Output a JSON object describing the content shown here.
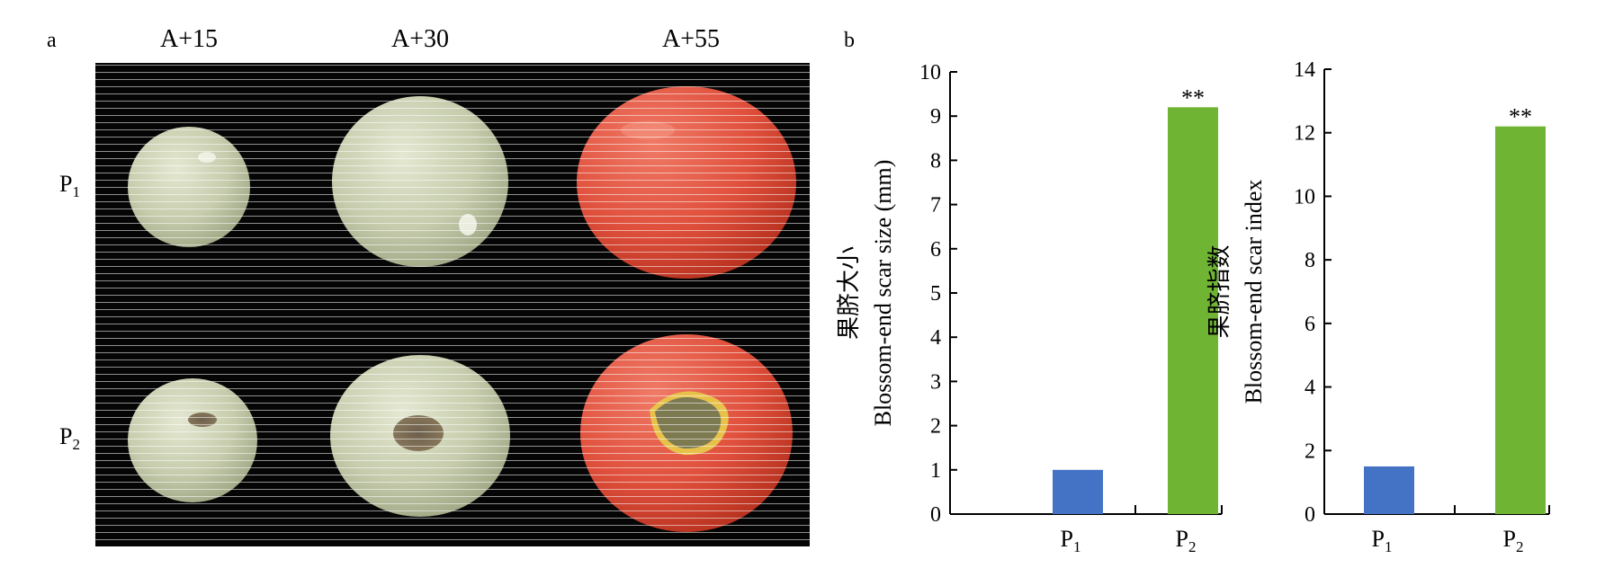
{
  "panel_a": {
    "label": "a",
    "columns": [
      "A+15",
      "A+30",
      "A+55"
    ],
    "rows": [
      {
        "base": "P",
        "sub": "1"
      },
      {
        "base": "P",
        "sub": "2"
      }
    ],
    "colors": {
      "background": "#050505",
      "green_fruit": "#c9ceb0",
      "red_fruit": "#e0503c",
      "scar": "#7a6a55"
    }
  },
  "panel_b": {
    "label": "b"
  },
  "chart_data": [
    {
      "type": "bar",
      "categories": [
        {
          "base": "P",
          "sub": "1"
        },
        {
          "base": "P",
          "sub": "2"
        }
      ],
      "values": [
        1.0,
        9.2
      ],
      "colors": [
        "#4472c4",
        "#70b434"
      ],
      "annotations": [
        "",
        "**"
      ],
      "ylabel_cn": "果脐大小",
      "ylabel_en": "Blossom-end scar size (mm)",
      "ylim": [
        0,
        10
      ],
      "yticks": [
        0,
        1,
        2,
        3,
        4,
        5,
        6,
        7,
        8,
        9,
        10
      ],
      "grid": false,
      "legend": "none"
    },
    {
      "type": "bar",
      "categories": [
        {
          "base": "P",
          "sub": "1"
        },
        {
          "base": "P",
          "sub": "2"
        }
      ],
      "values": [
        1.5,
        12.2
      ],
      "colors": [
        "#4472c4",
        "#70b434"
      ],
      "annotations": [
        "",
        "**"
      ],
      "ylabel_cn": "果脐指数",
      "ylabel_en": "Blossom-end scar index",
      "ylim": [
        0,
        14
      ],
      "yticks": [
        0,
        2,
        4,
        6,
        8,
        10,
        12,
        14
      ],
      "grid": false,
      "legend": "none"
    }
  ]
}
